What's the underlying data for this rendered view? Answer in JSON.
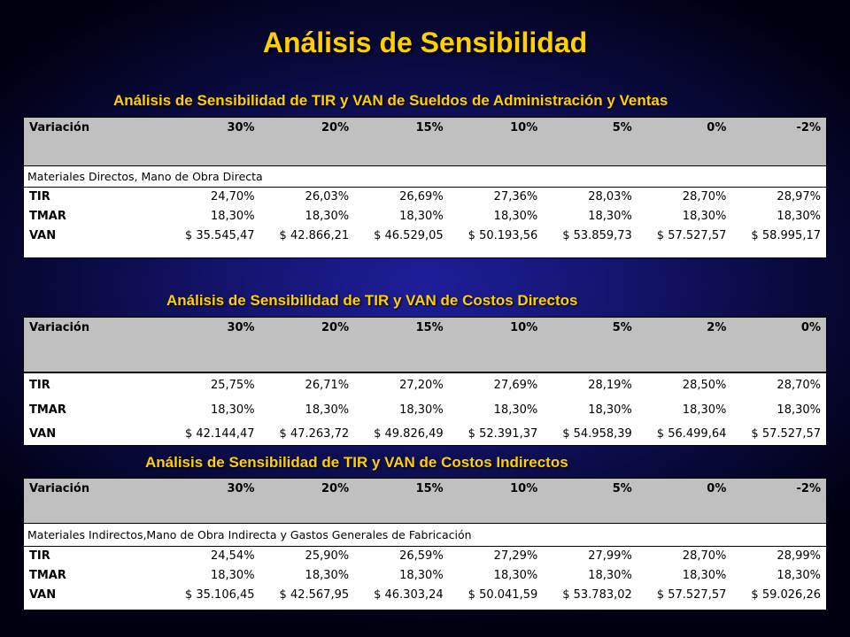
{
  "title": "Análisis de Sensibilidad",
  "sections": [
    {
      "subtitle": "Análisis de Sensibilidad de TIR y VAN de Sueldos de Administración y Ventas",
      "header": [
        "Variación",
        "30%",
        "20%",
        "15%",
        "10%",
        "5%",
        "0%",
        "-2%"
      ],
      "band": "Materiales Directos, Mano de Obra Directa",
      "rows": [
        {
          "label": "TIR",
          "values": [
            "24,70%",
            "26,03%",
            "26,69%",
            "27,36%",
            "28,03%",
            "28,70%",
            "28,97%"
          ]
        },
        {
          "label": "TMAR",
          "values": [
            "18,30%",
            "18,30%",
            "18,30%",
            "18,30%",
            "18,30%",
            "18,30%",
            "18,30%"
          ]
        },
        {
          "label": "VAN",
          "values": [
            "$ 35.545,47",
            "$ 42.866,21",
            "$ 46.529,05",
            "$ 50.193,56",
            "$ 53.859,73",
            "$ 57.527,57",
            "$ 58.995,17"
          ]
        }
      ]
    },
    {
      "subtitle": "Análisis de Sensibilidad de TIR y VAN de Costos Directos",
      "header": [
        "Variación",
        "30%",
        "20%",
        "15%",
        "10%",
        "5%",
        "2%",
        "0%"
      ],
      "band": "",
      "rows": [
        {
          "label": "TIR",
          "values": [
            "25,75%",
            "26,71%",
            "27,20%",
            "27,69%",
            "28,19%",
            "28,50%",
            "28,70%"
          ]
        },
        {
          "label": "TMAR",
          "values": [
            "18,30%",
            "18,30%",
            "18,30%",
            "18,30%",
            "18,30%",
            "18,30%",
            "18,30%"
          ]
        },
        {
          "label": "VAN",
          "values": [
            "$ 42.144,47",
            "$ 47.263,72",
            "$ 49.826,49",
            "$ 52.391,37",
            "$ 54.958,39",
            "$ 56.499,64",
            "$ 57.527,57"
          ]
        }
      ]
    },
    {
      "subtitle": "Análisis de Sensibilidad de TIR y VAN de Costos Indirectos",
      "header": [
        "Variación",
        "30%",
        "20%",
        "15%",
        "10%",
        "5%",
        "0%",
        "-2%"
      ],
      "band": "Materiales Indirectos,Mano de Obra Indirecta y Gastos Generales de Fabricación",
      "rows": [
        {
          "label": "TIR",
          "values": [
            "24,54%",
            "25,90%",
            "26,59%",
            "27,29%",
            "27,99%",
            "28,70%",
            "28,99%"
          ]
        },
        {
          "label": "TMAR",
          "values": [
            "18,30%",
            "18,30%",
            "18,30%",
            "18,30%",
            "18,30%",
            "18,30%",
            "18,30%"
          ]
        },
        {
          "label": "VAN",
          "values": [
            "$ 35.106,45",
            "$ 42.567,95",
            "$ 46.303,24",
            "$ 50.041,59",
            "$ 53.783,02",
            "$ 57.527,57",
            "$ 59.026,26"
          ]
        }
      ]
    }
  ]
}
